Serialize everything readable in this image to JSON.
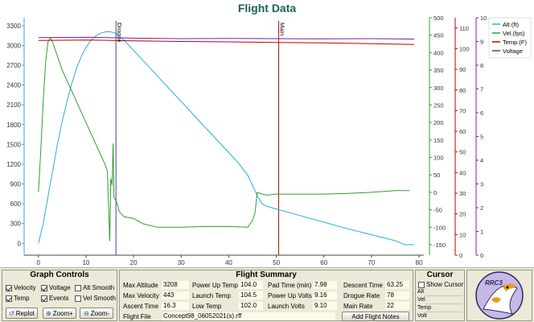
{
  "title": "Flight Data",
  "chart_data": {
    "type": "line",
    "x_ticks": [
      0,
      10,
      20,
      30,
      40,
      50,
      60,
      70,
      80
    ],
    "xlim": [
      -3,
      81
    ],
    "axes": [
      {
        "id": "alt",
        "ticks": [
          0,
          300,
          600,
          900,
          1200,
          1500,
          1800,
          2100,
          2400,
          2700,
          3000,
          3300
        ],
        "ylim": [
          -180,
          3420
        ],
        "color": "#29abe2"
      },
      {
        "id": "vel",
        "ticks": [
          -150,
          -100,
          -50,
          0,
          50,
          100,
          150,
          200,
          250,
          300,
          350,
          400,
          450,
          500
        ],
        "ylim": [
          -180,
          500
        ],
        "color": "#2ca02c"
      },
      {
        "id": "temp",
        "ticks": [
          0,
          10,
          20,
          30,
          40,
          50,
          60,
          70,
          80,
          90,
          100,
          110
        ],
        "ylim": [
          0,
          115
        ],
        "color": "#c00000"
      },
      {
        "id": "volt",
        "ticks": [
          0,
          1,
          2,
          3,
          4,
          5,
          6,
          7,
          8,
          9,
          10
        ],
        "ylim": [
          0,
          10
        ],
        "color": "#7f1f9f"
      }
    ],
    "series": [
      {
        "name": "Alt.(ft)",
        "axis": "alt",
        "color": "#29abe2",
        "points": [
          [
            0,
            0
          ],
          [
            1,
            300
          ],
          [
            2,
            700
          ],
          [
            3,
            1100
          ],
          [
            4,
            1500
          ],
          [
            5,
            1850
          ],
          [
            6,
            2150
          ],
          [
            7,
            2420
          ],
          [
            8,
            2650
          ],
          [
            9,
            2830
          ],
          [
            10,
            2970
          ],
          [
            11,
            3070
          ],
          [
            12,
            3140
          ],
          [
            13,
            3185
          ],
          [
            14,
            3205
          ],
          [
            15,
            3208
          ],
          [
            16,
            3190
          ],
          [
            18,
            3080
          ],
          [
            22,
            2770
          ],
          [
            26,
            2460
          ],
          [
            30,
            2150
          ],
          [
            34,
            1840
          ],
          [
            38,
            1530
          ],
          [
            42,
            1220
          ],
          [
            44,
            1030
          ],
          [
            46,
            720
          ],
          [
            47,
            600
          ],
          [
            48,
            560
          ],
          [
            50,
            520
          ],
          [
            55,
            420
          ],
          [
            60,
            320
          ],
          [
            65,
            220
          ],
          [
            70,
            130
          ],
          [
            75,
            40
          ],
          [
            77,
            -20
          ],
          [
            79,
            -20
          ]
        ]
      },
      {
        "name": "Vel.(fps)",
        "axis": "vel",
        "color": "#2ca02c",
        "points": [
          [
            0,
            0
          ],
          [
            0.5,
            120
          ],
          [
            1,
            260
          ],
          [
            1.5,
            370
          ],
          [
            2,
            430
          ],
          [
            2.5,
            443
          ],
          [
            3,
            430
          ],
          [
            4,
            390
          ],
          [
            5,
            350
          ],
          [
            6,
            320
          ],
          [
            7,
            290
          ],
          [
            8,
            260
          ],
          [
            9,
            230
          ],
          [
            10,
            200
          ],
          [
            11,
            170
          ],
          [
            12,
            140
          ],
          [
            13,
            110
          ],
          [
            14,
            80
          ],
          [
            14.5,
            60
          ],
          [
            15,
            -140
          ],
          [
            15.2,
            40
          ],
          [
            15.5,
            20
          ],
          [
            15.7,
            140
          ],
          [
            15.9,
            -15
          ],
          [
            16.5,
            -30
          ],
          [
            17,
            -55
          ],
          [
            18,
            -70
          ],
          [
            20,
            -75
          ],
          [
            22,
            -90
          ],
          [
            25,
            -100
          ],
          [
            30,
            -100
          ],
          [
            35,
            -98
          ],
          [
            40,
            -98
          ],
          [
            44,
            -100
          ],
          [
            45,
            -80
          ],
          [
            45.5,
            -60
          ],
          [
            46,
            0
          ],
          [
            47,
            -5
          ],
          [
            48,
            -8
          ],
          [
            50,
            -5
          ],
          [
            55,
            -5
          ],
          [
            60,
            -5
          ],
          [
            65,
            -3
          ],
          [
            70,
            0
          ],
          [
            75,
            5
          ],
          [
            78,
            5
          ]
        ]
      },
      {
        "name": "Temp.(F)",
        "axis": "temp",
        "color": "#c00000",
        "points": [
          [
            0,
            104.0
          ],
          [
            10,
            104.2
          ],
          [
            20,
            103.8
          ],
          [
            30,
            103.5
          ],
          [
            40,
            103.3
          ],
          [
            50,
            103.0
          ],
          [
            60,
            102.8
          ],
          [
            70,
            102.4
          ],
          [
            79,
            102.0
          ]
        ]
      },
      {
        "name": "Voltage",
        "axis": "volt",
        "color": "#7f1f9f",
        "points": [
          [
            0,
            9.16
          ],
          [
            10,
            9.18
          ],
          [
            20,
            9.14
          ],
          [
            30,
            9.12
          ],
          [
            40,
            9.13
          ],
          [
            50,
            9.12
          ],
          [
            60,
            9.11
          ],
          [
            70,
            9.12
          ],
          [
            79,
            9.1
          ]
        ]
      }
    ],
    "events": [
      {
        "label": "Drogue",
        "x": 16.3,
        "color": "#4b3fa0"
      },
      {
        "label": "Main",
        "x": 50.5,
        "color": "#b01010"
      }
    ],
    "legend_position": "top-right",
    "grid": false
  },
  "graph_controls": {
    "title": "Graph Controls",
    "checkboxes": [
      {
        "label": "Velocity",
        "checked": true
      },
      {
        "label": "Voltage",
        "checked": true
      },
      {
        "label": "Alt Smooth",
        "checked": false
      },
      {
        "label": "Temp",
        "checked": true
      },
      {
        "label": "Events",
        "checked": true
      },
      {
        "label": "Vel Smooth",
        "checked": false
      }
    ],
    "buttons": {
      "replot": "Replot",
      "zoom_in": "Zoom+",
      "zoom_out": "Zoom-"
    }
  },
  "flight_summary": {
    "title": "Flight Summary",
    "max_altitude": {
      "label": "Max Altitude",
      "value": "3208"
    },
    "max_velocity": {
      "label": "Max Velocity",
      "value": "443"
    },
    "ascent_time": {
      "label": "Ascent Time",
      "value": "16.3"
    },
    "power_up_temp": {
      "label": "Power Up Temp",
      "value": "104.0"
    },
    "launch_temp": {
      "label": "Launch Temp",
      "value": "104.5"
    },
    "low_temp": {
      "label": "Low Temp",
      "value": "102.0"
    },
    "pad_time": {
      "label": "Pad Time (min)",
      "value": "7.98"
    },
    "power_up_volts": {
      "label": "Power Up Volts",
      "value": "9.16"
    },
    "launch_volts": {
      "label": "Launch Volts",
      "value": "9.10"
    },
    "descent_time": {
      "label": "Descent Time",
      "value": "63.25"
    },
    "drogue_rate": {
      "label": "Drogue Rate",
      "value": "78"
    },
    "main_rate": {
      "label": "Main Rate",
      "value": "22"
    },
    "flight_file": {
      "label": "Flight File",
      "value": "Concept98_06052021(s).rff"
    },
    "add_notes_button": "Add Flight Notes"
  },
  "cursor": {
    "title": "Cursor",
    "show_cursor": {
      "label": "Show Cursor",
      "checked": false
    },
    "rows": [
      "Alt",
      "Vel",
      "Temp",
      "Volt"
    ]
  },
  "logo": {
    "text": "RRC3"
  }
}
